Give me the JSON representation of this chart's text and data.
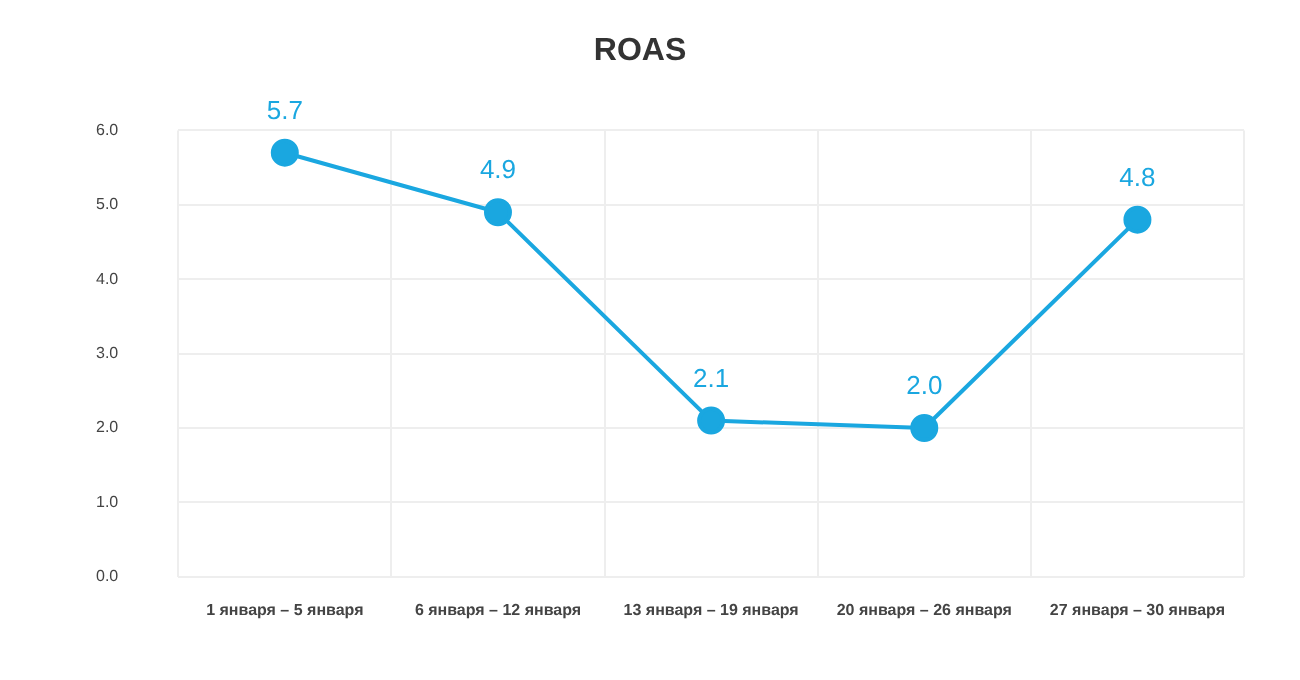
{
  "chart_data": {
    "type": "line",
    "title": "ROAS",
    "categories": [
      "1 января – 5 января",
      "6 января – 12 января",
      "13 января – 19 января",
      "20 января – 26 января",
      "27 января – 30 января"
    ],
    "series": [
      {
        "color": "#1aa7e0",
        "values": [
          5.7,
          4.9,
          2.1,
          2.0,
          4.8
        ],
        "value_labels": [
          "5.7",
          "4.9",
          "2.1",
          "2.0",
          "4.8"
        ]
      }
    ],
    "ylim": [
      0,
      6
    ],
    "yticks": [
      {
        "value": 0,
        "label": "0.0"
      },
      {
        "value": 1,
        "label": "1.0"
      },
      {
        "value": 2,
        "label": "2.0"
      },
      {
        "value": 3,
        "label": "3.0"
      },
      {
        "value": 4,
        "label": "4.0"
      },
      {
        "value": 5,
        "label": "5.0"
      },
      {
        "value": 6,
        "label": "6.0"
      }
    ],
    "grid": true,
    "marker": "circle",
    "line_style": "solid",
    "legend": false
  }
}
